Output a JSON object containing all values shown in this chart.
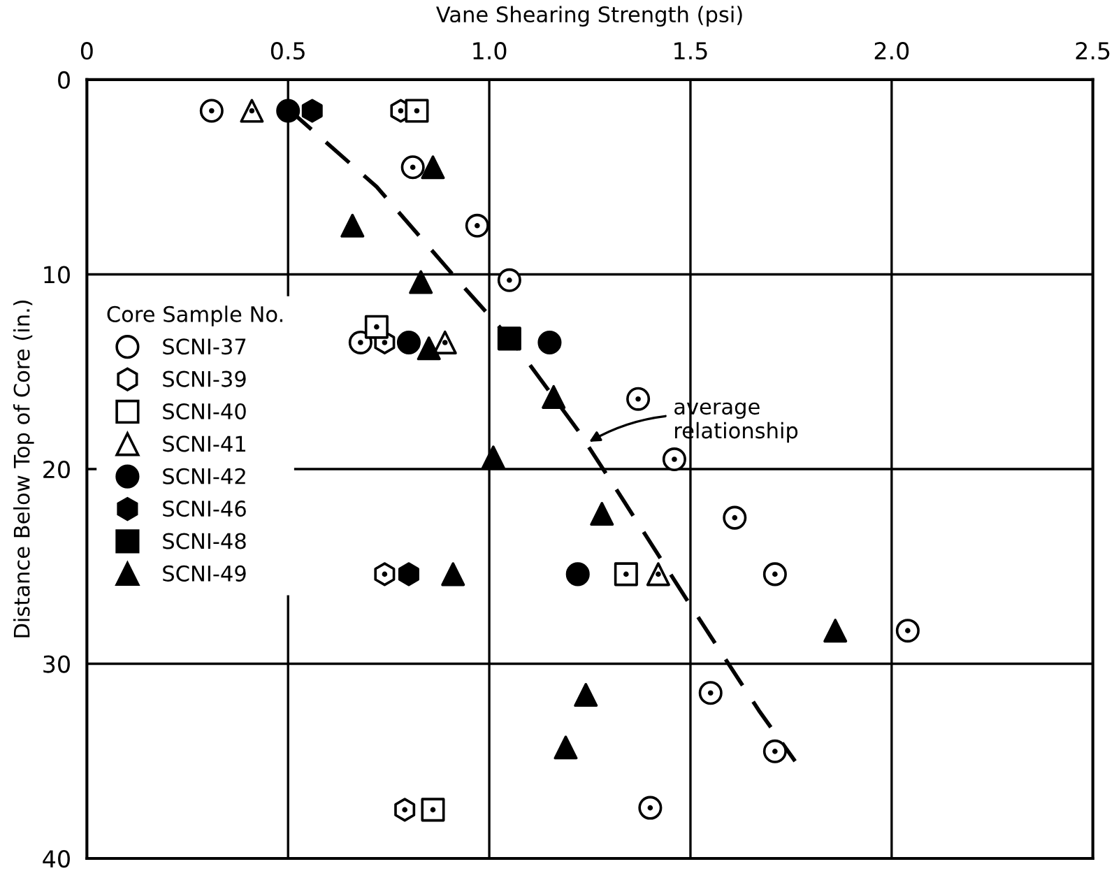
{
  "chart_data": {
    "type": "scatter",
    "xlabel": "Vane Shearing Strength (psi)",
    "ylabel": "Distance Below Top of Core (in.)",
    "legend_title": "Core Sample No.",
    "legend": "left",
    "grid": true,
    "xlim": [
      0,
      2.5
    ],
    "xticks": [
      0,
      0.5,
      {
        "value": 1,
        "label": "1.0"
      },
      1.5,
      {
        "value": 2,
        "label": "2.0"
      },
      2.5
    ],
    "ylim": [
      40,
      0
    ],
    "yticks": [
      0,
      10,
      20,
      30,
      40
    ],
    "series": [
      {
        "name": "SCNI-37",
        "color": "#ffffff",
        "marker": "circle",
        "x": [
          0.31,
          0.81,
          0.97,
          1.05,
          0.68,
          1.37,
          1.46,
          1.61,
          1.71,
          2.04,
          1.55,
          1.71,
          1.4
        ],
        "values": [
          1.6,
          4.5,
          7.5,
          10.3,
          13.5,
          16.4,
          19.5,
          22.5,
          25.4,
          28.3,
          31.5,
          34.5,
          37.4
        ]
      },
      {
        "name": "SCNI-39",
        "color": "#ffffff",
        "x": [
          0.78,
          0.74,
          0.74,
          0.79
        ],
        "values": [
          1.6,
          13.5,
          25.4,
          37.5
        ]
      },
      {
        "name": "SCNI-40",
        "color": "#ffffff",
        "marker": "square",
        "x": [
          0.82,
          0.72,
          1.34,
          0.86
        ],
        "values": [
          1.6,
          12.7,
          25.4,
          37.5
        ]
      },
      {
        "name": "SCNI-41",
        "color": "#ffffff",
        "marker": "triangle",
        "x": [
          0.41,
          0.89,
          1.42
        ],
        "values": [
          1.6,
          13.5,
          25.4
        ]
      },
      {
        "name": "SCNI-42",
        "color": "#000000",
        "marker": "circle",
        "x": [
          0.5,
          0.8,
          1.15,
          1.22
        ],
        "values": [
          1.6,
          13.5,
          13.5,
          25.4
        ]
      },
      {
        "name": "SCNI-46",
        "color": "#000000",
        "x": [
          0.56,
          0.8
        ],
        "values": [
          1.6,
          25.4
        ]
      },
      {
        "name": "SCNI-48",
        "color": "#000000",
        "marker": "square",
        "x": [
          1.05
        ],
        "values": [
          13.3
        ]
      },
      {
        "name": "SCNI-49",
        "color": "#000000",
        "marker": "triangle",
        "x": [
          0.86,
          0.66,
          0.83,
          0.85,
          1.16,
          1.01,
          1.28,
          0.91,
          1.86,
          1.24,
          1.19
        ],
        "values": [
          4.5,
          7.5,
          10.4,
          13.8,
          16.3,
          19.4,
          22.3,
          25.4,
          28.3,
          31.6,
          34.3
        ]
      },
      {
        "type": "line",
        "line_style": "dashed",
        "marker": "none",
        "color": "#000000",
        "x": [
          0.5,
          0.72,
          0.93,
          1.06,
          1.22,
          1.33,
          1.5,
          1.67,
          1.76
        ],
        "values": [
          1.5,
          5.5,
          10.5,
          13.5,
          18,
          21.5,
          27,
          32.4,
          35
        ]
      }
    ],
    "annotations": [
      {
        "text": "average\nrelationship",
        "x": 1.24,
        "y": 18.7
      }
    ]
  }
}
